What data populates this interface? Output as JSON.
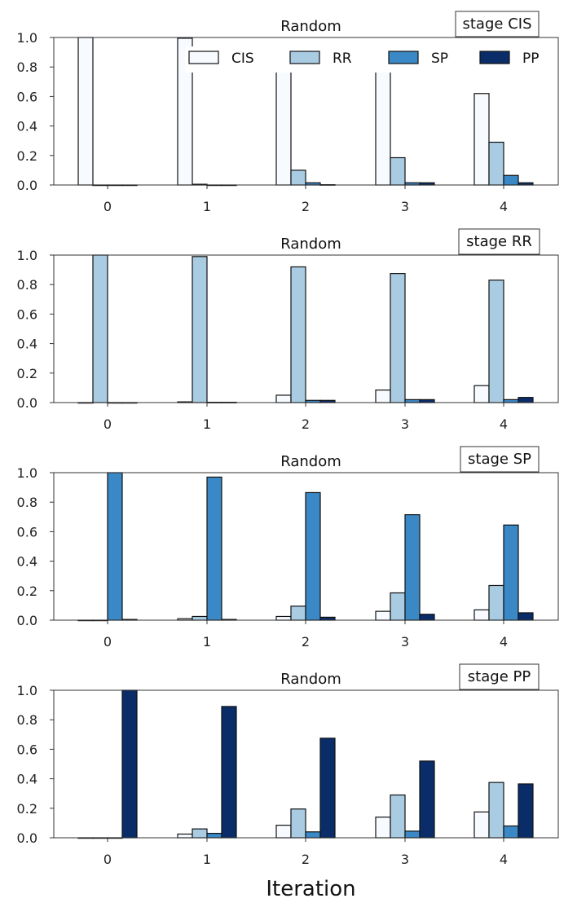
{
  "colors": {
    "CIS": "#f7fbff",
    "RR": "#a9cce3",
    "SP": "#3a88c5",
    "PP": "#0a2d69"
  },
  "legend": [
    "CIS",
    "RR",
    "SP",
    "PP"
  ],
  "chart_data": [
    {
      "type": "bar",
      "title": "Random",
      "stage": "stage CIS",
      "categories": [
        "0",
        "1",
        "2",
        "3",
        "4"
      ],
      "ylim": [
        0,
        1.0
      ],
      "yticks": [
        "0.0",
        "0.2",
        "0.4",
        "0.6",
        "0.8",
        "1.0"
      ],
      "xlabel": "",
      "series": [
        {
          "name": "CIS",
          "values": [
            1.0,
            0.995,
            0.88,
            0.79,
            0.62
          ]
        },
        {
          "name": "RR",
          "values": [
            0.0,
            0.005,
            0.1,
            0.185,
            0.29
          ]
        },
        {
          "name": "SP",
          "values": [
            0.0,
            0.0,
            0.015,
            0.015,
            0.065
          ]
        },
        {
          "name": "PP",
          "values": [
            0.0,
            0.0,
            0.002,
            0.015,
            0.015
          ]
        }
      ]
    },
    {
      "type": "bar",
      "title": "Random",
      "stage": "stage RR",
      "categories": [
        "0",
        "1",
        "2",
        "3",
        "4"
      ],
      "ylim": [
        0,
        1.0
      ],
      "yticks": [
        "0.0",
        "0.2",
        "0.4",
        "0.6",
        "0.8",
        "1.0"
      ],
      "xlabel": "",
      "series": [
        {
          "name": "CIS",
          "values": [
            0.0,
            0.005,
            0.05,
            0.085,
            0.115
          ]
        },
        {
          "name": "RR",
          "values": [
            1.0,
            0.99,
            0.92,
            0.875,
            0.83
          ]
        },
        {
          "name": "SP",
          "values": [
            0.0,
            0.002,
            0.015,
            0.02,
            0.02
          ]
        },
        {
          "name": "PP",
          "values": [
            0.0,
            0.002,
            0.015,
            0.02,
            0.035
          ]
        }
      ]
    },
    {
      "type": "bar",
      "title": "Random",
      "stage": "stage SP",
      "categories": [
        "0",
        "1",
        "2",
        "3",
        "4"
      ],
      "ylim": [
        0,
        1.0
      ],
      "yticks": [
        "0.0",
        "0.2",
        "0.4",
        "0.6",
        "0.8",
        "1.0"
      ],
      "xlabel": "",
      "series": [
        {
          "name": "CIS",
          "values": [
            0.0,
            0.01,
            0.025,
            0.06,
            0.07
          ]
        },
        {
          "name": "RR",
          "values": [
            0.0,
            0.025,
            0.095,
            0.185,
            0.235
          ]
        },
        {
          "name": "SP",
          "values": [
            1.0,
            0.97,
            0.865,
            0.715,
            0.645
          ]
        },
        {
          "name": "PP",
          "values": [
            0.005,
            0.005,
            0.02,
            0.04,
            0.05
          ]
        }
      ]
    },
    {
      "type": "bar",
      "title": "Random",
      "stage": "stage PP",
      "categories": [
        "0",
        "1",
        "2",
        "3",
        "4"
      ],
      "ylim": [
        0,
        1.0
      ],
      "yticks": [
        "0.0",
        "0.2",
        "0.4",
        "0.6",
        "0.8",
        "1.0"
      ],
      "xlabel": "Iteration",
      "series": [
        {
          "name": "CIS",
          "values": [
            0.0,
            0.025,
            0.085,
            0.14,
            0.175
          ]
        },
        {
          "name": "RR",
          "values": [
            0.0,
            0.06,
            0.195,
            0.29,
            0.375
          ]
        },
        {
          "name": "SP",
          "values": [
            0.0,
            0.03,
            0.04,
            0.045,
            0.08
          ]
        },
        {
          "name": "PP",
          "values": [
            1.0,
            0.89,
            0.675,
            0.52,
            0.365
          ]
        }
      ]
    }
  ]
}
